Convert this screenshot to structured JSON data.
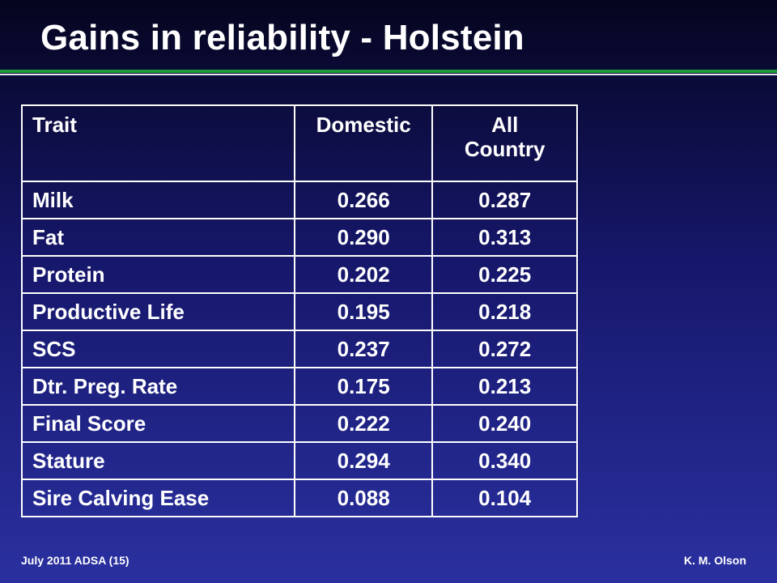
{
  "slide": {
    "title": "Gains in reliability - Holstein"
  },
  "table": {
    "headers": {
      "trait": "Trait",
      "domestic": "Domestic",
      "all_line1": "All",
      "all_line2": "Country"
    },
    "rows": [
      {
        "trait": "Milk",
        "domestic": "0.266",
        "all": "0.287"
      },
      {
        "trait": "Fat",
        "domestic": "0.290",
        "all": "0.313"
      },
      {
        "trait": "Protein",
        "domestic": "0.202",
        "all": "0.225"
      },
      {
        "trait": "Productive Life",
        "domestic": "0.195",
        "all": "0.218"
      },
      {
        "trait": "SCS",
        "domestic": "0.237",
        "all": "0.272"
      },
      {
        "trait": "Dtr. Preg. Rate",
        "domestic": "0.175",
        "all": "0.213"
      },
      {
        "trait": "Final Score",
        "domestic": "0.222",
        "all": "0.240"
      },
      {
        "trait": "Stature",
        "domestic": "0.294",
        "all": "0.340"
      },
      {
        "trait": "Sire Calving Ease",
        "domestic": "0.088",
        "all": "0.104"
      }
    ]
  },
  "footer": {
    "left": "July 2011 ADSA (15)",
    "right": "K. M. Olson"
  },
  "colors": {
    "rule_green": "#1f9a3a",
    "text": "#ffffff",
    "background_top": "#05051e",
    "background_bottom": "#2a30a0"
  }
}
